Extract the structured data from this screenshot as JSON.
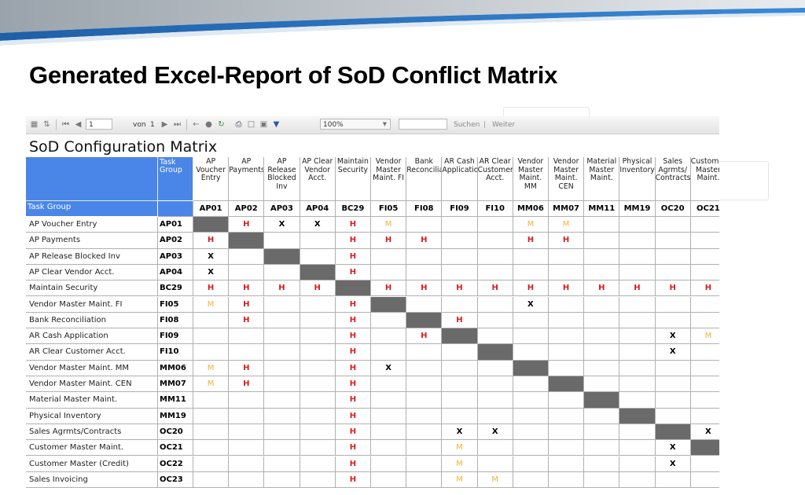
{
  "slide": {
    "title": "Generated Excel-Report of SoD Conflict Matrix"
  },
  "toolbar": {
    "page_current": "1",
    "page_of_label": "von",
    "page_total": "1",
    "zoom": "100%",
    "search_label": "Suchen",
    "separator": "|",
    "next_label": "Weiter"
  },
  "report": {
    "title": "SoD Configuration Matrix",
    "task_group_header": "Task Group",
    "task_group_row_label": "Task Group",
    "columns": [
      {
        "name": "AP Voucher Entry",
        "code": "AP01"
      },
      {
        "name": "AP Payments",
        "code": "AP02"
      },
      {
        "name": "AP Release Blocked Inv",
        "code": "AP03"
      },
      {
        "name": "AP Clear Vendor Acct.",
        "code": "AP04"
      },
      {
        "name": "Maintain Security",
        "code": "BC29"
      },
      {
        "name": "Vendor Master Maint. FI",
        "code": "FI05"
      },
      {
        "name": "Bank Reconciliation",
        "code": "FI08"
      },
      {
        "name": "AR Cash Application",
        "code": "FI09"
      },
      {
        "name": "AR Clear Customer Acct.",
        "code": "FI10"
      },
      {
        "name": "Vendor Master Maint. MM",
        "code": "MM06"
      },
      {
        "name": "Vendor Master Maint. CEN",
        "code": "MM07"
      },
      {
        "name": "Material Master Maint.",
        "code": "MM11"
      },
      {
        "name": "Physical Inventory",
        "code": "MM19"
      },
      {
        "name": "Sales Agrmts/ Contracts",
        "code": "OC20"
      },
      {
        "name": "Customer Master Maint.",
        "code": "OC21"
      }
    ],
    "rows": [
      {
        "name": "AP Voucher Entry",
        "code": "AP01",
        "cells": [
          "#",
          "H",
          "X",
          "X",
          "H",
          "M",
          "",
          "",
          "",
          "M",
          "M",
          "",
          "",
          "",
          ""
        ]
      },
      {
        "name": "AP Payments",
        "code": "AP02",
        "cells": [
          "H",
          "#",
          "",
          "",
          "H",
          "H",
          "H",
          "",
          "",
          "H",
          "H",
          "",
          "",
          "",
          ""
        ]
      },
      {
        "name": "AP Release Blocked Inv",
        "code": "AP03",
        "cells": [
          "X",
          "",
          "#",
          "",
          "H",
          "",
          "",
          "",
          "",
          "",
          "",
          "",
          "",
          "",
          ""
        ]
      },
      {
        "name": "AP Clear Vendor Acct.",
        "code": "AP04",
        "cells": [
          "X",
          "",
          "",
          "#",
          "H",
          "",
          "",
          "",
          "",
          "",
          "",
          "",
          "",
          "",
          ""
        ]
      },
      {
        "name": "Maintain Security",
        "code": "BC29",
        "cells": [
          "H",
          "H",
          "H",
          "H",
          "#",
          "H",
          "H",
          "H",
          "H",
          "H",
          "H",
          "H",
          "H",
          "H",
          "H"
        ]
      },
      {
        "name": "Vendor Master Maint. FI",
        "code": "FI05",
        "cells": [
          "M",
          "H",
          "",
          "",
          "H",
          "#",
          "",
          "",
          "",
          "X",
          "",
          "",
          "",
          "",
          ""
        ]
      },
      {
        "name": "Bank Reconciliation",
        "code": "FI08",
        "cells": [
          "",
          "H",
          "",
          "",
          "H",
          "",
          "#",
          "H",
          "",
          "",
          "",
          "",
          "",
          "",
          ""
        ]
      },
      {
        "name": "AR Cash Application",
        "code": "FI09",
        "cells": [
          "",
          "",
          "",
          "",
          "H",
          "",
          "H",
          "#",
          "",
          "",
          "",
          "",
          "",
          "X",
          "M"
        ]
      },
      {
        "name": "AR Clear Customer Acct.",
        "code": "FI10",
        "cells": [
          "",
          "",
          "",
          "",
          "H",
          "",
          "",
          "",
          "#",
          "",
          "",
          "",
          "",
          "X",
          ""
        ]
      },
      {
        "name": "Vendor Master Maint. MM",
        "code": "MM06",
        "cells": [
          "M",
          "H",
          "",
          "",
          "H",
          "X",
          "",
          "",
          "",
          "#",
          "",
          "",
          "",
          "",
          ""
        ]
      },
      {
        "name": "Vendor Master Maint. CEN",
        "code": "MM07",
        "cells": [
          "M",
          "H",
          "",
          "",
          "H",
          "",
          "",
          "",
          "",
          "",
          "#",
          "",
          "",
          "",
          ""
        ]
      },
      {
        "name": "Material Master Maint.",
        "code": "MM11",
        "cells": [
          "",
          "",
          "",
          "",
          "H",
          "",
          "",
          "",
          "",
          "",
          "",
          "#",
          "",
          "",
          ""
        ]
      },
      {
        "name": "Physical Inventory",
        "code": "MM19",
        "cells": [
          "",
          "",
          "",
          "",
          "H",
          "",
          "",
          "",
          "",
          "",
          "",
          "",
          "#",
          "",
          ""
        ]
      },
      {
        "name": "Sales Agrmts/Contracts",
        "code": "OC20",
        "cells": [
          "",
          "",
          "",
          "",
          "H",
          "",
          "",
          "X",
          "X",
          "",
          "",
          "",
          "",
          "#",
          "X"
        ]
      },
      {
        "name": "Customer Master Maint.",
        "code": "OC21",
        "cells": [
          "",
          "",
          "",
          "",
          "H",
          "",
          "",
          "M",
          "",
          "",
          "",
          "",
          "",
          "X",
          "#"
        ]
      },
      {
        "name": "Customer Master (Credit)",
        "code": "OC22",
        "cells": [
          "",
          "",
          "",
          "",
          "H",
          "",
          "",
          "M",
          "",
          "",
          "",
          "",
          "",
          "X",
          ""
        ]
      },
      {
        "name": "Sales Invoicing",
        "code": "OC23",
        "cells": [
          "",
          "",
          "",
          "",
          "H",
          "",
          "",
          "M",
          "M",
          "",
          "",
          "",
          "",
          "",
          ""
        ]
      }
    ],
    "colors": {
      "header_blue": "#4a86e8",
      "diagonal_gray": "#6a6a6a",
      "high_red": "#d91e1e",
      "medium_orange": "#f2b233"
    }
  }
}
